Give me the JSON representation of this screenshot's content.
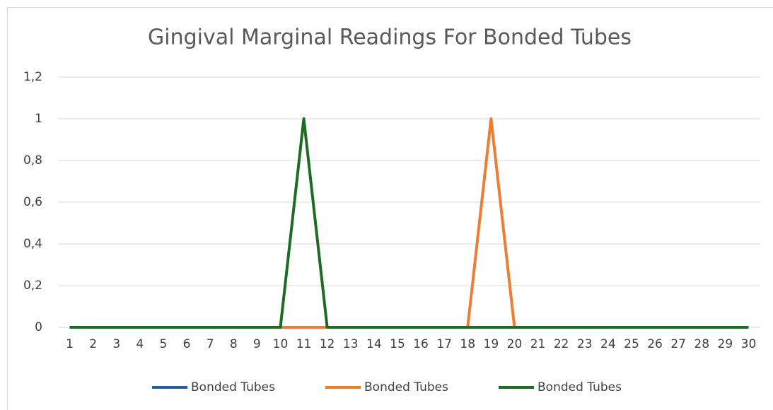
{
  "chart_data": {
    "type": "line",
    "title": "Gingival Marginal Readings For Bonded Tubes",
    "categories": [
      1,
      2,
      3,
      4,
      5,
      6,
      7,
      8,
      9,
      10,
      11,
      12,
      13,
      14,
      15,
      16,
      17,
      18,
      19,
      20,
      21,
      22,
      23,
      24,
      25,
      26,
      27,
      28,
      29,
      30
    ],
    "series": [
      {
        "name": "Bonded Tubes",
        "color": "#255e91",
        "values": [
          0,
          0,
          0,
          0,
          0,
          0,
          0,
          0,
          0,
          0,
          0,
          0,
          0,
          0,
          0,
          0,
          0,
          0,
          0,
          0,
          0,
          0,
          0,
          0,
          0,
          0,
          0,
          0,
          0,
          0
        ]
      },
      {
        "name": "Bonded Tubes",
        "color": "#ed7d31",
        "values": [
          0,
          0,
          0,
          0,
          0,
          0,
          0,
          0,
          0,
          0,
          0,
          0,
          0,
          0,
          0,
          0,
          0,
          0,
          1,
          0,
          0,
          0,
          0,
          0,
          0,
          0,
          0,
          0,
          0,
          0
        ]
      },
      {
        "name": "Bonded Tubes",
        "color": "#1e6b24",
        "values": [
          0,
          0,
          0,
          0,
          0,
          0,
          0,
          0,
          0,
          0,
          1,
          0,
          0,
          0,
          0,
          0,
          0,
          0,
          0,
          0,
          0,
          0,
          0,
          0,
          0,
          0,
          0,
          0,
          0,
          0
        ]
      }
    ],
    "ylim": [
      0,
      1.2
    ],
    "yticks": [
      0,
      {
        "value": 0.2,
        "label": "0,2"
      },
      {
        "value": 0.4,
        "label": "0,4"
      },
      {
        "value": 0.6,
        "label": "0,6"
      },
      {
        "value": 0.8,
        "label": "0,8"
      },
      1,
      {
        "value": 1.2,
        "label": "1,2"
      }
    ],
    "grid": true,
    "legend": "bottom"
  }
}
